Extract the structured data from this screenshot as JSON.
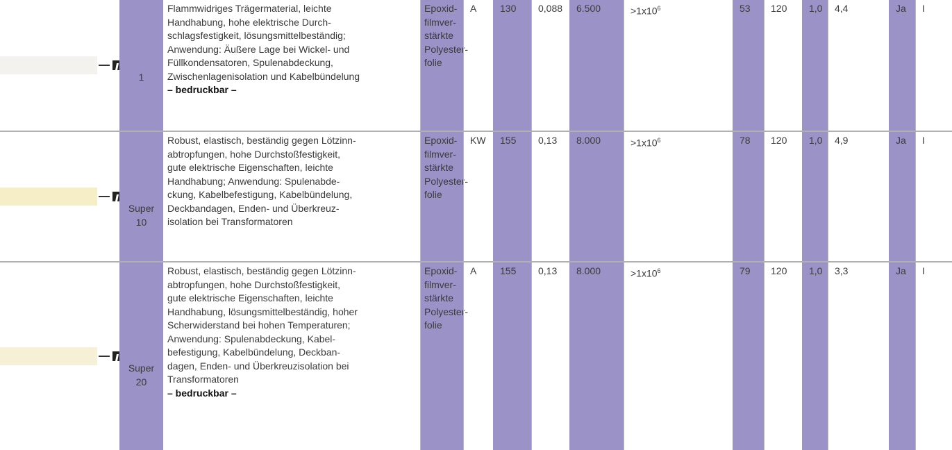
{
  "table": {
    "rows": [
      {
        "name": [
          "1"
        ],
        "description": [
          "Flammwidriges Trägermaterial, leichte",
          "Handhabung, hohe elektrische Durch-",
          "schlagsfestigkeit, lösungsmittelbeständig;",
          "Anwendung: Äußere Lage bei Wickel- und",
          "Füllkondensatoren, Spulenabdeckung,",
          "Zwischenlagenisolation und Kabelbündelung"
        ],
        "printable": "– bedruckbar –",
        "material": [
          "Epoxid-",
          "filmver-",
          "stärkte",
          "Polyester-",
          "folie"
        ],
        "cells": [
          "A",
          "130",
          "0,088",
          "6.500",
          {
            "base": ">1x10",
            "exp": "6"
          },
          "53",
          "120",
          "1,0",
          "4,4",
          "Ja",
          "I"
        ]
      },
      {
        "name": [
          "Super",
          "10"
        ],
        "description": [
          "Robust, elastisch, beständig gegen Lötzinn-",
          "abtropfungen, hohe Durchstoßfestigkeit,",
          "gute elektrische Eigenschaften, leichte",
          "Handhabung; Anwendung: Spulenabde-",
          "ckung, Kabelbefestigung, Kabelbündelung,",
          "Deckbandagen, Enden- und Überkreuz-",
          "isolation bei Transformatoren"
        ],
        "material": [
          "Epoxid-",
          "filmver-",
          "stärkte",
          "Polyester-",
          "folie"
        ],
        "cells": [
          "KW",
          "155",
          "0,13",
          "8.000",
          {
            "base": ">1x10",
            "exp": "6"
          },
          "78",
          "120",
          "1,0",
          "4,9",
          "Ja",
          "I"
        ]
      },
      {
        "name": [
          "Super",
          "20"
        ],
        "description": [
          "Robust, elastisch, beständig gegen Lötzinn-",
          "abtropfungen, hohe Durchstoßfestigkeit,",
          "gute elektrische Eigenschaften, leichte",
          "Handhabung, lösungsmittelbeständig, hoher",
          "Scherwiderstand bei hohen Temperaturen;",
          "Anwendung: Spulenabdeckung, Kabel-",
          "befestigung, Kabelbündelung, Deckban-",
          "dagen, Enden- und Überkreuzisolation bei",
          "Transformatoren"
        ],
        "printable": "– bedruckbar –",
        "material": [
          "Epoxid-",
          "filmver-",
          "stärkte",
          "Polyester-",
          "folie"
        ],
        "cells": [
          "A",
          "155",
          "0,13",
          "8.000",
          {
            "base": ">1x10",
            "exp": "6"
          },
          "79",
          "120",
          "1,0",
          "3,3",
          "Ja",
          "I"
        ]
      }
    ]
  }
}
